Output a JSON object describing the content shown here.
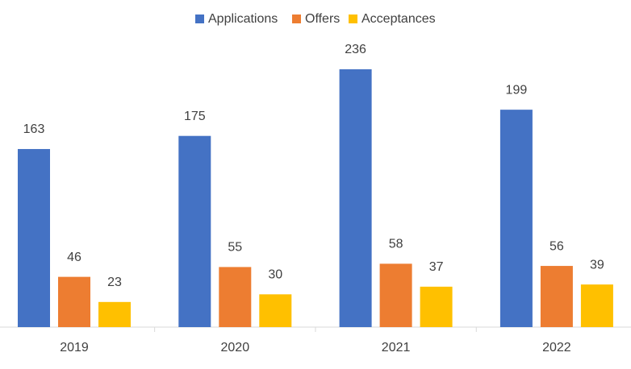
{
  "chart_data": {
    "type": "bar",
    "categories": [
      "2019",
      "2020",
      "2021",
      "2022"
    ],
    "series": [
      {
        "name": "Applications",
        "color": "#4472c4",
        "values": [
          163,
          175,
          236,
          199
        ]
      },
      {
        "name": "Offers",
        "color": "#ed7d31",
        "values": [
          46,
          55,
          58,
          56
        ]
      },
      {
        "name": "Acceptances",
        "color": "#ffc000",
        "values": [
          23,
          30,
          37,
          39
        ]
      }
    ],
    "ylim": [
      0,
      250
    ],
    "legend": "top"
  }
}
